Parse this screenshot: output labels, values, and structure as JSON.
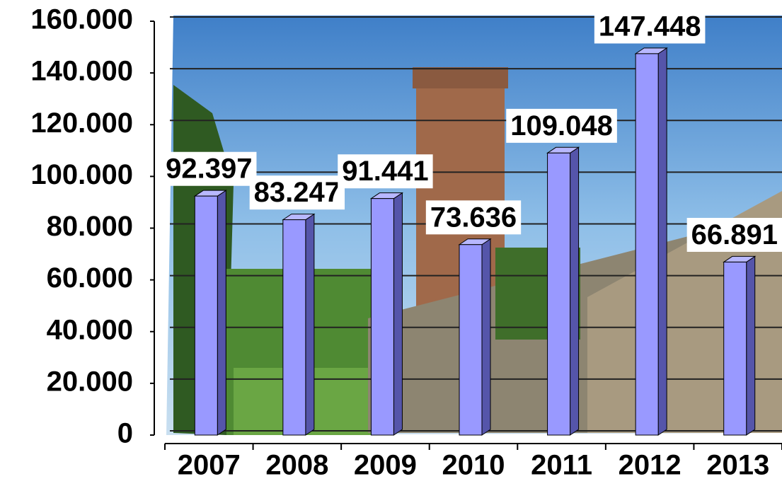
{
  "chart_data": {
    "type": "bar",
    "categories": [
      "2007",
      "2008",
      "2009",
      "2010",
      "2011",
      "2012",
      "2013"
    ],
    "values": [
      92397,
      83247,
      91441,
      73636,
      109048,
      147448,
      66891
    ],
    "value_labels": [
      "92.397",
      "83.247",
      "91.441",
      "73.636",
      "109.048",
      "147.448",
      "66.891"
    ],
    "color": "#9999ff",
    "ylim": [
      0,
      160000
    ],
    "yticks": [
      0,
      {
        "value": 20000,
        "label": "20.000"
      },
      {
        "value": 40000,
        "label": "40.000"
      },
      {
        "value": 60000,
        "label": "60.000"
      },
      {
        "value": 80000,
        "label": "80.000"
      },
      {
        "value": 100000,
        "label": "100.000"
      },
      {
        "value": 120000,
        "label": "120.000"
      },
      {
        "value": 140000,
        "label": "140.000"
      },
      {
        "value": 160000,
        "label": "160.000"
      }
    ],
    "grid": true
  }
}
